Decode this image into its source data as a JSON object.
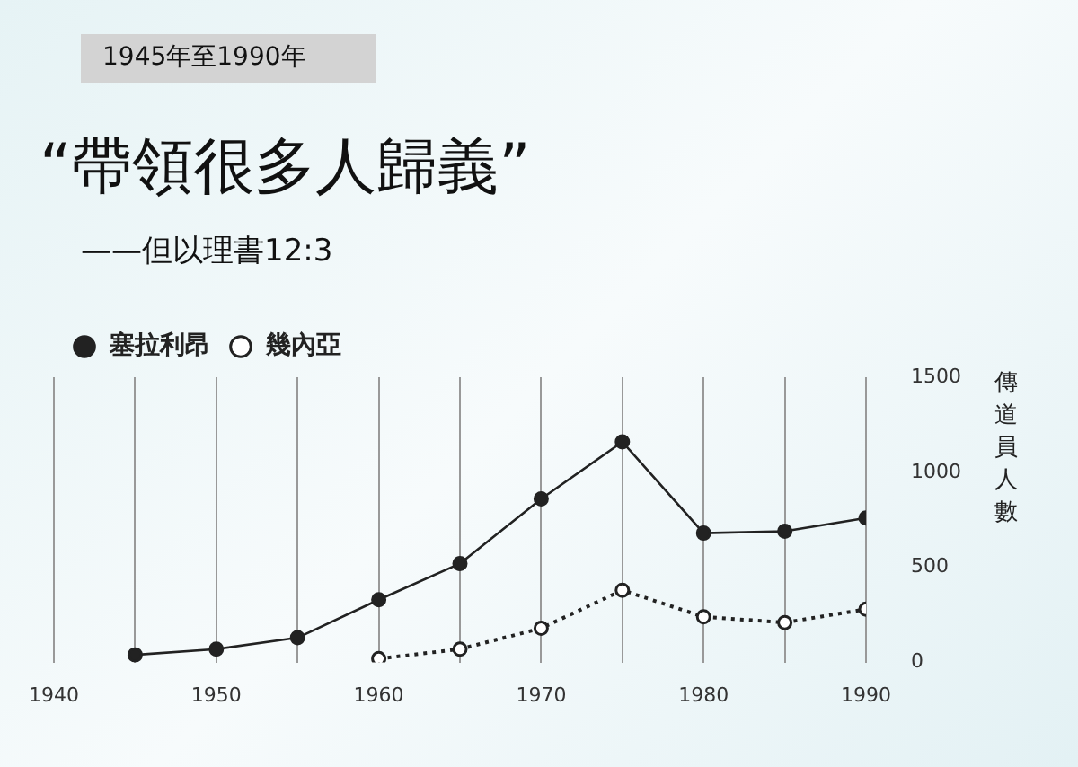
{
  "chart_data": {
    "type": "line",
    "title": "“帶領很多人歸義”",
    "subtitle": "——但以理書12:3",
    "annotations": [
      "1945年至1990年"
    ],
    "ylabel": "傳道員人數",
    "series": [
      {
        "name": "塞拉利昂",
        "color": "#222222",
        "line_style": "solid",
        "x": [
          1945,
          1950,
          1955,
          1960,
          1965,
          1970,
          1975,
          1980,
          1985,
          1990
        ],
        "values": [
          40,
          70,
          130,
          330,
          520,
          860,
          1160,
          680,
          690,
          760
        ]
      },
      {
        "name": "幾內亞",
        "color": "#222222",
        "line_style": "dotted",
        "x": [
          1960,
          1965,
          1970,
          1975,
          1980,
          1985,
          1990
        ],
        "values": [
          20,
          70,
          180,
          380,
          240,
          210,
          280
        ]
      }
    ],
    "xlim": [
      1940,
      1990
    ],
    "xticks": [
      1940,
      {
        "value": 1945,
        "label": null
      },
      1950,
      {
        "value": 1955,
        "label": null
      },
      1960,
      {
        "value": 1965,
        "label": null
      },
      1970,
      {
        "value": 1975,
        "label": null
      },
      1980,
      {
        "value": 1985,
        "label": null
      },
      1990
    ],
    "ylim": [
      0,
      1500
    ],
    "yticks": [
      0,
      500,
      1000,
      1500
    ],
    "grid": "x",
    "legend": "top left",
    "marker": "circle"
  }
}
